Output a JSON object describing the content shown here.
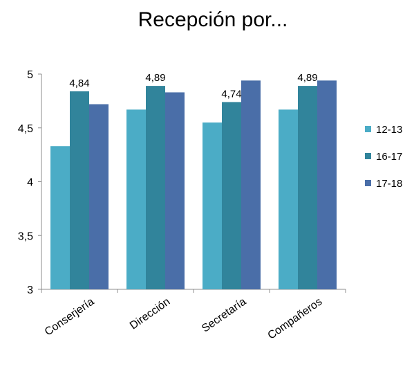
{
  "chart_data": {
    "type": "bar",
    "title": "Recepción por...",
    "categories": [
      "Conserjería",
      "Dirección",
      "Secretaría",
      "Compañeros"
    ],
    "series": [
      {
        "name": "12-13",
        "values": [
          4.33,
          4.67,
          4.55,
          4.67
        ],
        "color": "#4bacc6"
      },
      {
        "name": "16-17",
        "values": [
          4.84,
          4.89,
          4.74,
          4.89
        ],
        "color": "#31849b"
      },
      {
        "name": "17-18",
        "values": [
          4.72,
          4.83,
          4.94,
          4.94
        ],
        "color": "#4a6ea8"
      }
    ],
    "data_labels": [
      {
        "category_index": 0,
        "series_index": 1,
        "text": "4,84"
      },
      {
        "category_index": 1,
        "series_index": 1,
        "text": "4,89"
      },
      {
        "category_index": 2,
        "series_index": 1,
        "text": "4,74"
      },
      {
        "category_index": 3,
        "series_index": 1,
        "text": "4,89"
      }
    ],
    "ylim": [
      3,
      5
    ],
    "y_ticks": [
      {
        "value": 3,
        "label": "3"
      },
      {
        "value": 3.5,
        "label": "3,5"
      },
      {
        "value": 4,
        "label": "4"
      },
      {
        "value": 4.5,
        "label": "4,5"
      },
      {
        "value": 5,
        "label": "5"
      }
    ],
    "grid": false,
    "legend_position": "right"
  }
}
